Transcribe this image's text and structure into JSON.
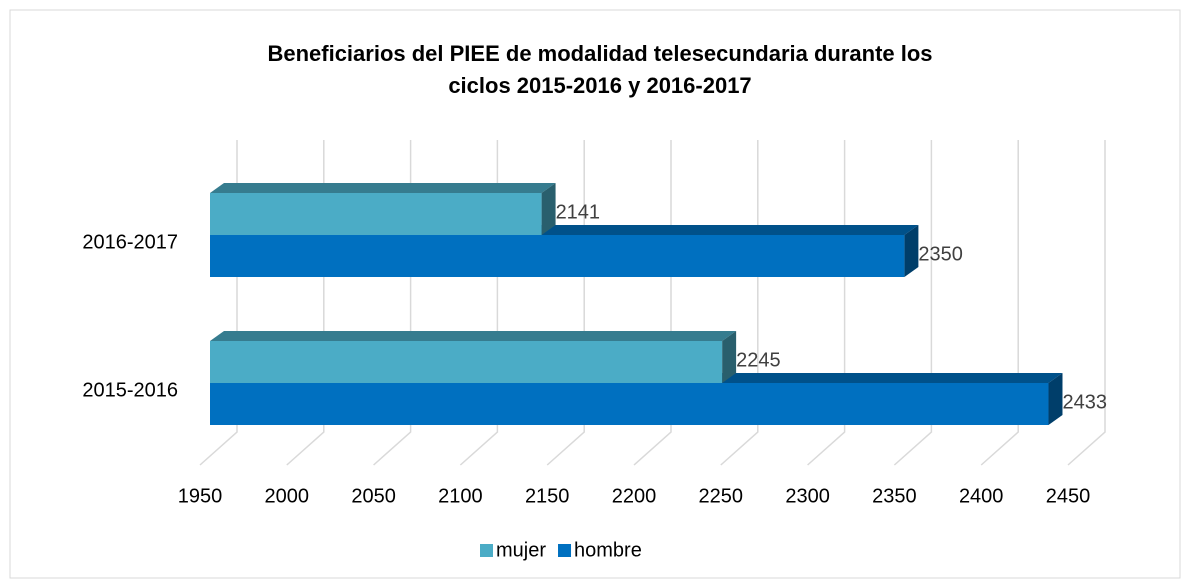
{
  "chart_data": {
    "type": "bar3d_horizontal",
    "title": "Beneficiarios del PIEE de modalidad telesecundaria durante los",
    "title_line2": "ciclos 2015-2016 y 2016-2017",
    "categories": [
      "2015-2016",
      "2016-2017"
    ],
    "series": [
      {
        "name": "mujer",
        "color": "#4bacc6",
        "values": [
          2245,
          2141
        ]
      },
      {
        "name": "hombre",
        "color": "#0070c0",
        "values": [
          2433,
          2350
        ]
      }
    ],
    "xlim": [
      1950,
      2450
    ],
    "xticks": [
      1950,
      2000,
      2050,
      2100,
      2150,
      2200,
      2250,
      2300,
      2350,
      2400,
      2450
    ],
    "grid": true,
    "legend": "bottom"
  }
}
